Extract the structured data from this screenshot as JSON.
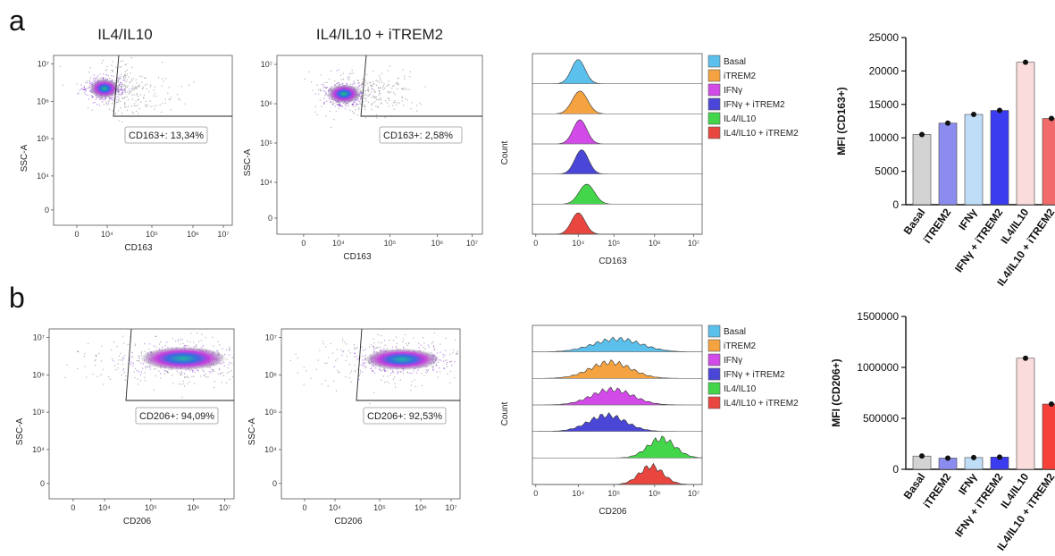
{
  "panels": [
    {
      "letter": "a",
      "titles": [
        "IL4/IL10",
        "IL4/IL10 + iTREM2"
      ],
      "marker": "CD163",
      "yaxis": "SSC-A",
      "gates": [
        "CD163+: 13,34%",
        "CD163+: 2,58%"
      ],
      "hist_ylabel": "Count",
      "hist_xlabel": "CD163",
      "scatter_xticks": [
        "0",
        "10⁴",
        "10⁵",
        "10⁶",
        "10⁷"
      ],
      "scatter_yticks": [
        "10⁷",
        "10⁶",
        "10⁵",
        "10⁴",
        "0"
      ]
    },
    {
      "letter": "b",
      "titles": [
        "",
        ""
      ],
      "marker": "CD206",
      "yaxis": "SSC-A",
      "gates": [
        "CD206+: 94,09%",
        "CD206+: 92,53%"
      ],
      "hist_ylabel": "Count",
      "hist_xlabel": "CD206",
      "scatter_xticks": [
        "0",
        "10⁴",
        "10⁵",
        "10⁶",
        "10⁷"
      ],
      "scatter_yticks": [
        "10⁷",
        "10⁶",
        "10⁵",
        "10⁴",
        "0"
      ]
    }
  ],
  "legend": [
    {
      "label": "Basal",
      "color": "#5BC0EB"
    },
    {
      "label": "iTREM2",
      "color": "#F4A340"
    },
    {
      "label": "IFNγ",
      "color": "#D24BE8"
    },
    {
      "label": "IFNγ + iTREM2",
      "color": "#4A47D8"
    },
    {
      "label": "IL4/IL10",
      "color": "#43D64A"
    },
    {
      "label": "IL4/IL10 + iTREM2",
      "color": "#E8463E"
    }
  ],
  "chart_data": [
    {
      "type": "bar",
      "panel": "a",
      "ylabel": "MFI (CD163+)",
      "categories": [
        "Basal",
        "iTREM2",
        "IFNγ",
        "IFNγ + iTREM2",
        "IL4/IL10",
        "IL4/IL10 + iTREM2"
      ],
      "values": [
        10500,
        12200,
        13500,
        14100,
        21300,
        12900
      ],
      "ylim": [
        0,
        25000
      ],
      "yticks": [
        "0",
        "5000",
        "10000",
        "15000",
        "20000",
        "25000"
      ],
      "bar_colors": [
        "#D3D3D3",
        "#8C8CF0",
        "#BFDDF7",
        "#3B3BEF",
        "#FBDCDC",
        "#F26B6B"
      ]
    },
    {
      "type": "bar",
      "panel": "b",
      "ylabel": "MFI (CD206+)",
      "categories": [
        "Basal",
        "iTREM2",
        "IFNγ",
        "IFNγ + iTREM2",
        "IL4/IL10",
        "IL4/IL10 + iTREM2"
      ],
      "values": [
        130000,
        110000,
        115000,
        120000,
        1090000,
        640000
      ],
      "ylim": [
        0,
        1500000
      ],
      "yticks": [
        "0",
        "500000",
        "1000000",
        "1500000"
      ],
      "bar_colors": [
        "#D3D3D3",
        "#8C8CF0",
        "#BFDDF7",
        "#3B3BEF",
        "#FBDCDC",
        "#F5413A"
      ]
    }
  ]
}
